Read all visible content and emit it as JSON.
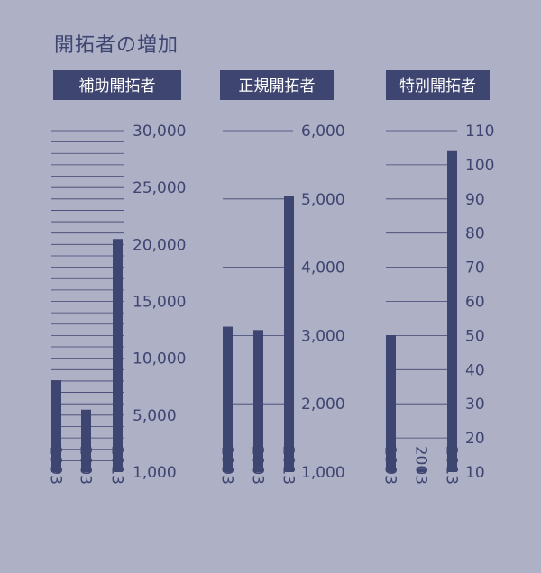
{
  "title": "開拓者の増加",
  "colors": {
    "background": "#aeb0c6",
    "bar": "#3e4570",
    "grid": "#3e4570",
    "label_box": "#3e4570",
    "label_text": "#ffffff"
  },
  "chart_data": [
    {
      "type": "bar",
      "title": "補助開拓者",
      "categories": [
        "1993",
        "2003",
        "2013"
      ],
      "values": [
        8800,
        6300,
        20800
      ],
      "ylim": [
        1000,
        30000
      ],
      "yticks": [
        "30,000",
        "25,000",
        "20,000",
        "15,000",
        "10,000",
        "5,000",
        "1,000"
      ],
      "grid": true
    },
    {
      "type": "bar",
      "title": "正規開拓者",
      "categories": [
        "1993",
        "2003",
        "2013"
      ],
      "values": [
        3130,
        3080,
        5050
      ],
      "ylim": [
        1000,
        6000
      ],
      "yticks": [
        "6,000",
        "5,000",
        "4,000",
        "3,000",
        "2,000",
        "1,000"
      ],
      "grid": true
    },
    {
      "type": "bar",
      "title": "特別開拓者",
      "categories": [
        "1993",
        "2003",
        "2013"
      ],
      "values": [
        50,
        11,
        104
      ],
      "ylim": [
        10,
        110
      ],
      "yticks": [
        "110",
        "100",
        "90",
        "80",
        "70",
        "60",
        "50",
        "40",
        "30",
        "20",
        "10"
      ],
      "grid": true
    }
  ]
}
